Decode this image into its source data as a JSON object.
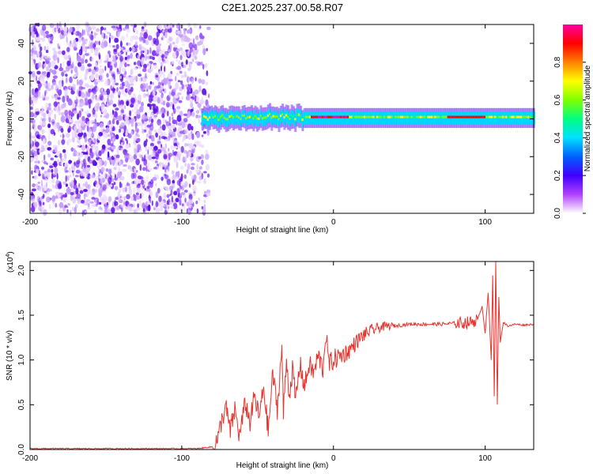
{
  "title": "C2E1.2025.237.00.58.R07",
  "chart_data": [
    {
      "type": "heatmap",
      "name": "spectrogram",
      "xlabel": "Height of straight line (km)",
      "ylabel": "Frequency (Hz)",
      "xlim": [
        -200,
        132
      ],
      "ylim": [
        -50,
        50
      ],
      "xticks": [
        -200,
        -100,
        0,
        100
      ],
      "xtick_labels": [
        "-200",
        "-100",
        "0",
        "100"
      ],
      "yticks": [
        -40,
        -20,
        0,
        20,
        40
      ],
      "ytick_labels": [
        "-40",
        "-20",
        "0",
        "20",
        "40"
      ],
      "noise_region_km": [
        -200,
        -87
      ],
      "signal_band_hz": [
        -3,
        4
      ],
      "colorbar": {
        "label": "Normalized spectral amplitude",
        "range": [
          0,
          1
        ],
        "ticks": [
          0.0,
          0.2,
          0.4,
          0.6,
          0.8
        ],
        "tick_labels": [
          "0.0",
          "0.2",
          "0.4",
          "0.6",
          "0.8"
        ],
        "colors": [
          "#ffffff",
          "#b040ff",
          "#4000ff",
          "#0060ff",
          "#00e0ff",
          "#00ff80",
          "#80ff00",
          "#ffff00",
          "#ff8000",
          "#ff0000",
          "#ff00a0"
        ]
      }
    },
    {
      "type": "line",
      "name": "snr",
      "xlabel": "Height of straight line (km)",
      "ylabel": "SNR (10 * v/v)",
      "y_scale_label": "(x10",
      "y_scale_exponent": "4",
      "xlim": [
        -200,
        132
      ],
      "ylim": [
        0,
        2.1
      ],
      "xticks": [
        -200,
        -100,
        0,
        100
      ],
      "xtick_labels": [
        "-200",
        "-100",
        "0",
        "100"
      ],
      "yticks": [
        0.0,
        0.5,
        1.0,
        1.5,
        2.0
      ],
      "ytick_labels": [
        "0.0",
        "0.5",
        "1.0",
        "1.5",
        "2.0"
      ],
      "series": [
        {
          "name": "SNR",
          "color": "#e8332d",
          "x": [
            -200,
            -180,
            -160,
            -140,
            -120,
            -100,
            -90,
            -80,
            -76,
            -74,
            -71,
            -68,
            -65,
            -62,
            -58,
            -55,
            -52,
            -49,
            -46,
            -43,
            -40,
            -37,
            -34,
            -33,
            -31,
            -29,
            -27,
            -25,
            -22,
            -19,
            -16,
            -13,
            -10,
            -7,
            -5,
            -3,
            0,
            5,
            10,
            15,
            20,
            25,
            30,
            35,
            40,
            50,
            60,
            70,
            80,
            90,
            95,
            98,
            100,
            102,
            104,
            105,
            106,
            107,
            108,
            109,
            110,
            112,
            115,
            120,
            125,
            132
          ],
          "y": [
            0.01,
            0.01,
            0.01,
            0.01,
            0.01,
            0.01,
            0.01,
            0.03,
            0.12,
            0.3,
            0.48,
            0.2,
            0.45,
            0.15,
            0.52,
            0.3,
            0.6,
            0.35,
            0.7,
            0.2,
            0.85,
            0.45,
            1.15,
            0.4,
            1.0,
            0.6,
            0.9,
            0.55,
            0.95,
            0.7,
            0.95,
            0.85,
            1.05,
            0.9,
            1.3,
            0.95,
            1.0,
            1.05,
            1.1,
            1.2,
            1.28,
            1.33,
            1.36,
            1.38,
            1.38,
            1.4,
            1.4,
            1.4,
            1.41,
            1.42,
            1.45,
            1.6,
            1.3,
            1.75,
            1.0,
            1.95,
            0.6,
            2.1,
            0.5,
            1.7,
            1.2,
            1.42,
            1.38,
            1.4,
            1.39,
            1.4
          ]
        }
      ]
    }
  ]
}
